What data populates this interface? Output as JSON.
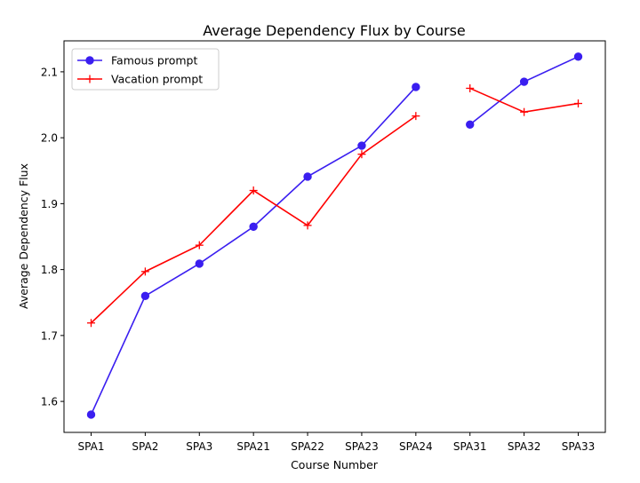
{
  "chart_data": {
    "type": "line",
    "title": "Average Dependency Flux by Course",
    "xlabel": "Course Number",
    "ylabel": "Average Dependency Flux",
    "categories": [
      "SPA1",
      "SPA2",
      "SPA3",
      "SPA21",
      "SPA22",
      "SPA23",
      "SPA24",
      "SPA31",
      "SPA32",
      "SPA33"
    ],
    "ylim": [
      1.553,
      2.147
    ],
    "yticks": [
      1.6,
      1.7,
      1.8,
      1.9,
      2.0,
      2.1
    ],
    "grid": false,
    "legend_position": "top-left",
    "series": [
      {
        "name": "Famous prompt",
        "color": "#3a1ef0",
        "marker": "circle",
        "values": [
          1.58,
          1.76,
          1.809,
          1.865,
          1.941,
          1.988,
          2.077,
          2.02,
          2.085,
          2.123
        ],
        "segments": [
          [
            0,
            6
          ],
          [
            7,
            9
          ]
        ]
      },
      {
        "name": "Vacation prompt",
        "color": "#ff0000",
        "marker": "plus",
        "values": [
          1.719,
          1.797,
          1.837,
          1.92,
          1.867,
          1.975,
          2.033,
          2.075,
          2.039,
          2.052
        ],
        "segments": [
          [
            0,
            6
          ],
          [
            7,
            9
          ]
        ]
      }
    ]
  }
}
